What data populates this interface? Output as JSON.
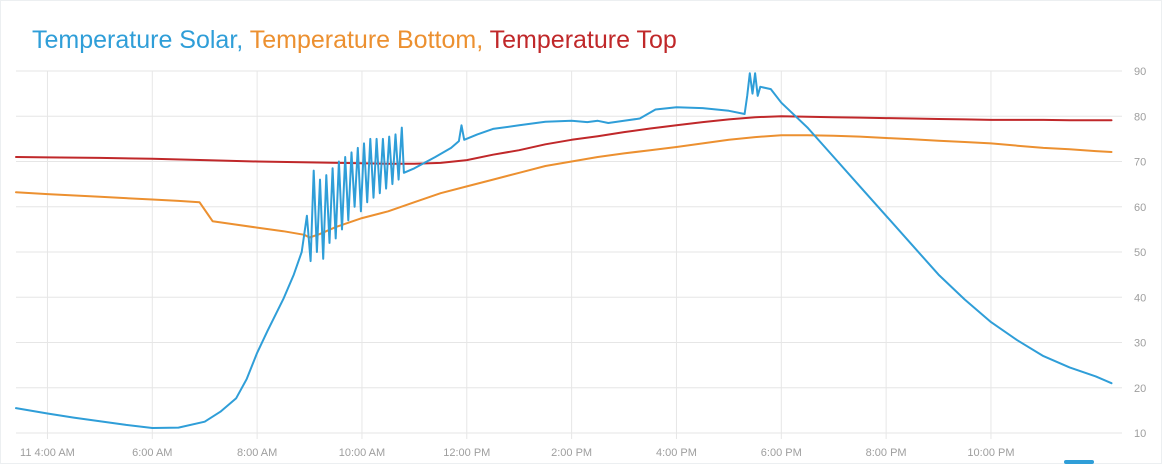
{
  "title_parts": [
    {
      "text": "Temperature Solar,",
      "color": "#2f9ed8"
    },
    {
      "text": "Temperature Bottom,",
      "color": "#ec9030"
    },
    {
      "text": "Temperature Top",
      "color": "#c0282a"
    }
  ],
  "chart_data": {
    "type": "line",
    "title": "Temperature Solar, Temperature Bottom, Temperature Top",
    "xlabel": "",
    "ylabel": "",
    "x_unit": "hours since midnight",
    "xlim": [
      3.4,
      24.5
    ],
    "ylim": [
      10,
      90
    ],
    "y_ticks": [
      10,
      20,
      30,
      40,
      50,
      60,
      70,
      80,
      90
    ],
    "x_ticks": [
      {
        "h": 4,
        "label": "11 4:00 AM"
      },
      {
        "h": 6,
        "label": "6:00 AM"
      },
      {
        "h": 8,
        "label": "8:00 AM"
      },
      {
        "h": 10,
        "label": "10:00 AM"
      },
      {
        "h": 12,
        "label": "12:00 PM"
      },
      {
        "h": 14,
        "label": "2:00 PM"
      },
      {
        "h": 16,
        "label": "4:00 PM"
      },
      {
        "h": 18,
        "label": "6:00 PM"
      },
      {
        "h": 20,
        "label": "8:00 PM"
      },
      {
        "h": 22,
        "label": "10:00 PM"
      }
    ],
    "grid": true,
    "y_axis_position": "right",
    "series": [
      {
        "name": "Temperature Solar",
        "color": "#2f9ed8",
        "points": [
          [
            3.4,
            15.5
          ],
          [
            4.0,
            14.3
          ],
          [
            4.5,
            13.4
          ],
          [
            5.0,
            12.6
          ],
          [
            5.5,
            11.8
          ],
          [
            6.0,
            11.1
          ],
          [
            6.5,
            11.2
          ],
          [
            7.0,
            12.5
          ],
          [
            7.3,
            14.7
          ],
          [
            7.6,
            17.7
          ],
          [
            7.8,
            21.9
          ],
          [
            8.0,
            27.7
          ],
          [
            8.2,
            32.6
          ],
          [
            8.5,
            39.6
          ],
          [
            8.7,
            45.0
          ],
          [
            8.85,
            50.0
          ],
          [
            8.95,
            58.0
          ],
          [
            9.02,
            48.0
          ],
          [
            9.08,
            68.0
          ],
          [
            9.14,
            50.0
          ],
          [
            9.2,
            66.0
          ],
          [
            9.26,
            48.5
          ],
          [
            9.32,
            67.0
          ],
          [
            9.38,
            52.0
          ],
          [
            9.44,
            68.5
          ],
          [
            9.5,
            53.0
          ],
          [
            9.56,
            70.0
          ],
          [
            9.62,
            55.0
          ],
          [
            9.68,
            71.0
          ],
          [
            9.74,
            57.0
          ],
          [
            9.8,
            72.0
          ],
          [
            9.86,
            60.0
          ],
          [
            9.92,
            73.0
          ],
          [
            9.98,
            59.0
          ],
          [
            10.04,
            74.0
          ],
          [
            10.1,
            61.0
          ],
          [
            10.16,
            75.0
          ],
          [
            10.22,
            62.0
          ],
          [
            10.28,
            75.0
          ],
          [
            10.34,
            63.0
          ],
          [
            10.4,
            75.0
          ],
          [
            10.46,
            64.0
          ],
          [
            10.52,
            75.5
          ],
          [
            10.58,
            65.0
          ],
          [
            10.64,
            76.0
          ],
          [
            10.7,
            66.0
          ],
          [
            10.76,
            77.5
          ],
          [
            10.8,
            67.5
          ],
          [
            11.0,
            68.5
          ],
          [
            11.4,
            71.0
          ],
          [
            11.7,
            73.0
          ],
          [
            11.85,
            74.5
          ],
          [
            11.9,
            78.0
          ],
          [
            11.95,
            74.8
          ],
          [
            12.2,
            76.0
          ],
          [
            12.5,
            77.2
          ],
          [
            13.0,
            78.0
          ],
          [
            13.5,
            78.8
          ],
          [
            14.0,
            79.0
          ],
          [
            14.3,
            78.7
          ],
          [
            14.5,
            79.0
          ],
          [
            14.7,
            78.5
          ],
          [
            15.0,
            79.0
          ],
          [
            15.3,
            79.5
          ],
          [
            15.6,
            81.5
          ],
          [
            16.0,
            82.0
          ],
          [
            16.5,
            81.8
          ],
          [
            17.0,
            81.2
          ],
          [
            17.3,
            80.5
          ],
          [
            17.35,
            84.5
          ],
          [
            17.4,
            89.5
          ],
          [
            17.45,
            85.0
          ],
          [
            17.5,
            89.5
          ],
          [
            17.55,
            84.5
          ],
          [
            17.6,
            86.5
          ],
          [
            17.8,
            86.0
          ],
          [
            18.0,
            83.0
          ],
          [
            18.5,
            77.5
          ],
          [
            19.0,
            71.0
          ],
          [
            19.5,
            64.5
          ],
          [
            20.0,
            58.0
          ],
          [
            20.5,
            51.5
          ],
          [
            21.0,
            45.0
          ],
          [
            21.5,
            39.5
          ],
          [
            22.0,
            34.5
          ],
          [
            22.5,
            30.5
          ],
          [
            23.0,
            27.0
          ],
          [
            23.5,
            24.5
          ],
          [
            24.0,
            22.5
          ],
          [
            24.3,
            21.0
          ]
        ]
      },
      {
        "name": "Temperature Bottom",
        "color": "#ec9030",
        "points": [
          [
            3.4,
            63.2
          ],
          [
            4.0,
            62.8
          ],
          [
            5.0,
            62.2
          ],
          [
            6.0,
            61.6
          ],
          [
            6.5,
            61.3
          ],
          [
            6.9,
            61.0
          ],
          [
            7.05,
            58.5
          ],
          [
            7.15,
            56.8
          ],
          [
            7.5,
            56.2
          ],
          [
            8.0,
            55.4
          ],
          [
            8.5,
            54.6
          ],
          [
            8.9,
            53.8
          ],
          [
            9.0,
            53.2
          ],
          [
            9.2,
            54.0
          ],
          [
            9.5,
            55.5
          ],
          [
            10.0,
            57.5
          ],
          [
            10.5,
            59.0
          ],
          [
            11.0,
            61.0
          ],
          [
            11.5,
            63.0
          ],
          [
            12.0,
            64.5
          ],
          [
            12.5,
            66.0
          ],
          [
            13.0,
            67.5
          ],
          [
            13.5,
            69.0
          ],
          [
            14.0,
            70.0
          ],
          [
            14.5,
            71.0
          ],
          [
            15.0,
            71.8
          ],
          [
            15.5,
            72.5
          ],
          [
            16.0,
            73.2
          ],
          [
            16.5,
            74.0
          ],
          [
            17.0,
            74.8
          ],
          [
            17.5,
            75.4
          ],
          [
            18.0,
            75.8
          ],
          [
            18.5,
            75.8
          ],
          [
            19.0,
            75.7
          ],
          [
            19.5,
            75.5
          ],
          [
            20.0,
            75.2
          ],
          [
            20.5,
            74.9
          ],
          [
            21.0,
            74.6
          ],
          [
            21.5,
            74.3
          ],
          [
            22.0,
            74.0
          ],
          [
            22.5,
            73.5
          ],
          [
            23.0,
            73.0
          ],
          [
            23.5,
            72.7
          ],
          [
            24.0,
            72.3
          ],
          [
            24.3,
            72.1
          ]
        ]
      },
      {
        "name": "Temperature Top",
        "color": "#c0282a",
        "points": [
          [
            3.4,
            71.0
          ],
          [
            4.0,
            70.9
          ],
          [
            5.0,
            70.8
          ],
          [
            6.0,
            70.6
          ],
          [
            7.0,
            70.3
          ],
          [
            8.0,
            70.0
          ],
          [
            9.0,
            69.8
          ],
          [
            10.0,
            69.6
          ],
          [
            10.5,
            69.5
          ],
          [
            11.0,
            69.5
          ],
          [
            11.5,
            69.7
          ],
          [
            12.0,
            70.3
          ],
          [
            12.5,
            71.5
          ],
          [
            13.0,
            72.5
          ],
          [
            13.5,
            73.8
          ],
          [
            14.0,
            74.8
          ],
          [
            14.5,
            75.6
          ],
          [
            15.0,
            76.5
          ],
          [
            15.5,
            77.3
          ],
          [
            16.0,
            78.0
          ],
          [
            16.5,
            78.7
          ],
          [
            17.0,
            79.3
          ],
          [
            17.5,
            79.8
          ],
          [
            18.0,
            80.0
          ],
          [
            18.5,
            79.9
          ],
          [
            19.0,
            79.8
          ],
          [
            19.5,
            79.7
          ],
          [
            20.0,
            79.6
          ],
          [
            20.5,
            79.5
          ],
          [
            21.0,
            79.4
          ],
          [
            21.5,
            79.3
          ],
          [
            22.0,
            79.2
          ],
          [
            22.5,
            79.2
          ],
          [
            23.0,
            79.2
          ],
          [
            23.5,
            79.1
          ],
          [
            24.0,
            79.1
          ],
          [
            24.3,
            79.1
          ]
        ]
      }
    ]
  }
}
